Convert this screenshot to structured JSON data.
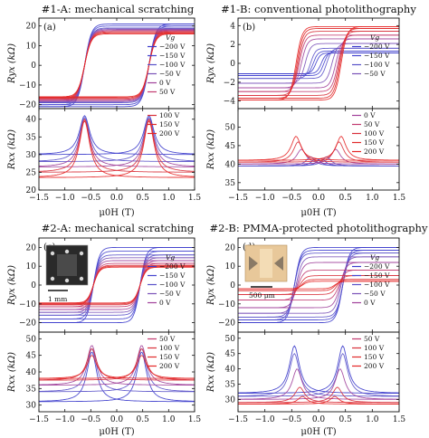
{
  "figure": {
    "type": "multi-panel hysteresis plots"
  },
  "chart_data": [
    {
      "id": "1A",
      "type": "line",
      "title": "#1-A: mechanical scratching",
      "panel_letter": "(a)",
      "xlabel": "μ0H (T)",
      "xlim": [
        -1.5,
        1.5
      ],
      "xticks": [
        "−1.5",
        "−1.0",
        "−0.5",
        "0.0",
        "0.5",
        "1.0",
        "1.5"
      ],
      "top": {
        "ylabel": "Ryx (kΩ)",
        "ylim": [
          -22,
          24
        ],
        "yticks": [
          -20,
          -10,
          0,
          10,
          20
        ],
        "legend_title": "Vg",
        "legend": [
          "−200 V",
          "−150 V",
          "−100 V",
          "−50 V",
          "0 V",
          "50 V"
        ],
        "series": [
          {
            "name": "−200 V",
            "color": "#3a3acb",
            "sat": 21,
            "hc": 0.62
          },
          {
            "name": "−150 V",
            "color": "#4545cf",
            "sat": 20,
            "hc": 0.62
          },
          {
            "name": "−100 V",
            "color": "#5a52c9",
            "sat": 19,
            "hc": 0.62
          },
          {
            "name": "−50 V",
            "color": "#7a52b8",
            "sat": 18.5,
            "hc": 0.62
          },
          {
            "name": "0 V",
            "color": "#a0409a",
            "sat": 18,
            "hc": 0.62
          },
          {
            "name": "50 V",
            "color": "#c23a70",
            "sat": 17.5,
            "hc": 0.62
          },
          {
            "name": "100 V",
            "color": "#d8303a",
            "sat": 17,
            "hc": 0.62
          },
          {
            "name": "150 V",
            "color": "#e02a2a",
            "sat": 16.5,
            "hc": 0.62
          },
          {
            "name": "200 V",
            "color": "#e52525",
            "sat": 16,
            "hc": 0.62
          }
        ]
      },
      "bottom": {
        "ylabel": "Rxx (kΩ)",
        "ylim": [
          20,
          43
        ],
        "yticks": [
          20,
          25,
          30,
          35,
          40
        ],
        "legend": [
          "100 V",
          "150 V",
          "200 V"
        ],
        "series": [
          {
            "name": "−200 V",
            "color": "#3a3acb",
            "base": 30,
            "peak": 41,
            "hc": 0.62
          },
          {
            "name": "−100 V",
            "color": "#5a52c9",
            "base": 28,
            "peak": 40.5,
            "hc": 0.62
          },
          {
            "name": "0 V",
            "color": "#a0409a",
            "base": 26.5,
            "peak": 40,
            "hc": 0.62
          },
          {
            "name": "100 V",
            "color": "#d8303a",
            "base": 25,
            "peak": 40,
            "hc": 0.62
          },
          {
            "name": "200 V",
            "color": "#e52525",
            "base": 23.5,
            "peak": 39.5,
            "hc": 0.62
          }
        ]
      }
    },
    {
      "id": "1B",
      "type": "line",
      "title": "#1-B: conventional photolithography",
      "panel_letter": "(b)",
      "xlabel": "μ0H (T)",
      "xlim": [
        -1.5,
        1.5
      ],
      "xticks": [
        "−1.5",
        "−1.0",
        "−0.5",
        "0.0",
        "0.5",
        "1.0",
        "1.5"
      ],
      "top": {
        "ylabel": "Ryx (kΩ)",
        "ylim": [
          -4.8,
          4.8
        ],
        "yticks": [
          -4,
          -2,
          0,
          2,
          4
        ],
        "legend_title": "Vg",
        "legend": [
          "−200 V",
          "−150 V",
          "−100 V",
          "−50 V"
        ],
        "series": [
          {
            "name": "−200 V",
            "color": "#3a3acb",
            "sat": 1.1,
            "hc": 0.05
          },
          {
            "name": "−150 V",
            "color": "#4545cf",
            "sat": 1.3,
            "hc": 0.1
          },
          {
            "name": "−100 V",
            "color": "#5a52c9",
            "sat": 1.6,
            "hc": 0.15
          },
          {
            "name": "−50 V",
            "color": "#7a52b8",
            "sat": 2.1,
            "hc": 0.25
          },
          {
            "name": "0 V",
            "color": "#a0409a",
            "sat": 2.6,
            "hc": 0.32
          },
          {
            "name": "50 V",
            "color": "#c23a70",
            "sat": 3.0,
            "hc": 0.36
          },
          {
            "name": "100 V",
            "color": "#d8303a",
            "sat": 3.4,
            "hc": 0.38
          },
          {
            "name": "150 V",
            "color": "#e02a2a",
            "sat": 3.7,
            "hc": 0.4
          },
          {
            "name": "200 V",
            "color": "#e52525",
            "sat": 3.9,
            "hc": 0.42
          }
        ]
      },
      "bottom": {
        "ylabel": "Rxx (kΩ)",
        "ylim": [
          33,
          55
        ],
        "yticks": [
          35,
          40,
          45,
          50
        ],
        "legend": [
          "0 V",
          "50 V",
          "100 V",
          "150 V",
          "200 V"
        ],
        "series": [
          {
            "name": "−200 V",
            "color": "#3a3acb",
            "base": 39.5,
            "peak": 41.5,
            "hc": 0.05
          },
          {
            "name": "−100 V",
            "color": "#5a52c9",
            "base": 39.5,
            "peak": 42,
            "hc": 0.15
          },
          {
            "name": "0 V",
            "color": "#a0409a",
            "base": 40,
            "peak": 44,
            "hc": 0.32
          },
          {
            "name": "100 V",
            "color": "#d8303a",
            "base": 40.5,
            "peak": 46,
            "hc": 0.38
          },
          {
            "name": "200 V",
            "color": "#e52525",
            "base": 41,
            "peak": 47.5,
            "hc": 0.42
          }
        ]
      }
    },
    {
      "id": "2A",
      "type": "line",
      "title": "#2-A: mechanical scratching",
      "panel_letter": "(c)",
      "inset_scale": "1 mm",
      "xlabel": "μ0H (T)",
      "xlim": [
        -1.5,
        1.5
      ],
      "xticks": [
        "−1.5",
        "−1.0",
        "−0.5",
        "0.0",
        "0.5",
        "1.0",
        "1.5"
      ],
      "top": {
        "ylabel": "Ryx (kΩ)",
        "ylim": [
          -25,
          25
        ],
        "yticks": [
          -20,
          -10,
          0,
          10,
          20
        ],
        "legend_title": "Vg",
        "legend": [
          "−200 V",
          "−150 V",
          "−100 V",
          "−50 V",
          "0 V"
        ],
        "series": [
          {
            "name": "−200 V",
            "color": "#3a3acb",
            "sat": 20,
            "hc": 0.45
          },
          {
            "name": "−150 V",
            "color": "#4545cf",
            "sat": 18,
            "hc": 0.45
          },
          {
            "name": "−100 V",
            "color": "#5a52c9",
            "sat": 16,
            "hc": 0.45
          },
          {
            "name": "−50 V",
            "color": "#7a52b8",
            "sat": 14.5,
            "hc": 0.45
          },
          {
            "name": "0 V",
            "color": "#a0409a",
            "sat": 13,
            "hc": 0.45
          },
          {
            "name": "50 V",
            "color": "#c23a70",
            "sat": 11.5,
            "hc": 0.45
          },
          {
            "name": "100 V",
            "color": "#d8303a",
            "sat": 10.5,
            "hc": 0.45
          },
          {
            "name": "150 V",
            "color": "#e02a2a",
            "sat": 10,
            "hc": 0.45
          },
          {
            "name": "200 V",
            "color": "#e52525",
            "sat": 9.5,
            "hc": 0.45
          }
        ]
      },
      "bottom": {
        "ylabel": "Rxx (kΩ)",
        "ylim": [
          28,
          52
        ],
        "yticks": [
          30,
          35,
          40,
          45,
          50
        ],
        "legend": [
          "50 V",
          "100 V",
          "150 V",
          "200 V"
        ],
        "series": [
          {
            "name": "−200 V",
            "color": "#3a3acb",
            "base": 31,
            "peak": 46,
            "hc": 0.48
          },
          {
            "name": "−100 V",
            "color": "#5a52c9",
            "base": 34,
            "peak": 47,
            "hc": 0.48
          },
          {
            "name": "0 V",
            "color": "#a0409a",
            "base": 36,
            "peak": 48,
            "hc": 0.48
          },
          {
            "name": "100 V",
            "color": "#d8303a",
            "base": 37.5,
            "peak": 47,
            "hc": 0.48
          },
          {
            "name": "200 V",
            "color": "#e52525",
            "base": 38,
            "peak": 45,
            "hc": 0.48
          }
        ]
      }
    },
    {
      "id": "2B",
      "type": "line",
      "title": "#2-B: PMMA-protected photolithography",
      "panel_letter": "(d)",
      "inset_scale": "500 μm",
      "xlabel": "μ0H (T)",
      "xlim": [
        -1.5,
        1.5
      ],
      "xticks": [
        "−1.5",
        "−1.0",
        "−0.5",
        "0.0",
        "0.5",
        "1.0",
        "1.5"
      ],
      "top": {
        "ylabel": "Ryx (kΩ)",
        "ylim": [
          -25,
          25
        ],
        "yticks": [
          -20,
          -10,
          0,
          10,
          20
        ],
        "legend_title": "Vg",
        "legend": [
          "−200 V",
          "−150 V",
          "−100 V",
          "−50 V",
          "0 V"
        ],
        "series": [
          {
            "name": "−200 V",
            "color": "#3a3acb",
            "sat": 20,
            "hc": 0.45
          },
          {
            "name": "−150 V",
            "color": "#4545cf",
            "sat": 18.5,
            "hc": 0.45
          },
          {
            "name": "−100 V",
            "color": "#5a52c9",
            "sat": 17,
            "hc": 0.45
          },
          {
            "name": "−50 V",
            "color": "#7a52b8",
            "sat": 15,
            "hc": 0.42
          },
          {
            "name": "0 V",
            "color": "#a0409a",
            "sat": 12,
            "hc": 0.4
          },
          {
            "name": "50 V",
            "color": "#c23a70",
            "sat": 8,
            "hc": 0.38
          },
          {
            "name": "100 V",
            "color": "#d8303a",
            "sat": 5,
            "hc": 0.35
          },
          {
            "name": "150 V",
            "color": "#e02a2a",
            "sat": 3,
            "hc": 0.32
          },
          {
            "name": "200 V",
            "color": "#e52525",
            "sat": 2,
            "hc": 0.3
          }
        ]
      },
      "bottom": {
        "ylabel": "Rxx (kΩ)",
        "ylim": [
          26,
          52
        ],
        "yticks": [
          30,
          35,
          40,
          45,
          50
        ],
        "legend": [
          "50 V",
          "100 V",
          "150 V",
          "200 V"
        ],
        "series": [
          {
            "name": "−200 V",
            "color": "#3a3acb",
            "base": 32,
            "peak": 47.5,
            "hc": 0.45
          },
          {
            "name": "−100 V",
            "color": "#5a52c9",
            "base": 31,
            "peak": 45,
            "hc": 0.45
          },
          {
            "name": "0 V",
            "color": "#a0409a",
            "base": 30,
            "peak": 40,
            "hc": 0.4
          },
          {
            "name": "100 V",
            "color": "#d8303a",
            "base": 29,
            "peak": 34,
            "hc": 0.35
          },
          {
            "name": "200 V",
            "color": "#e52525",
            "base": 28.5,
            "peak": 31,
            "hc": 0.3
          }
        ]
      }
    }
  ]
}
